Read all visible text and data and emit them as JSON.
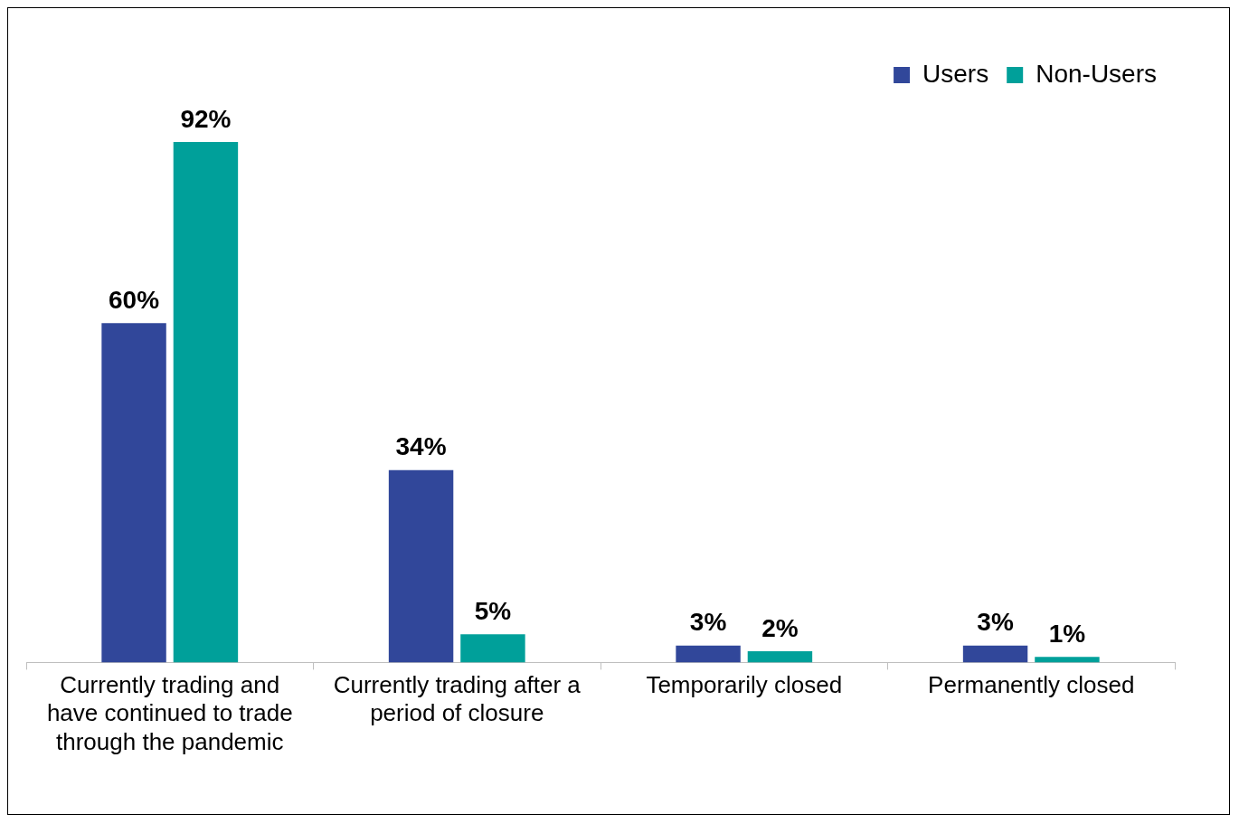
{
  "chart_data": {
    "type": "bar",
    "categories": [
      "Currently trading and have continued to trade through the pandemic",
      "Currently trading after a period of closure",
      "Temporarily closed",
      "Permanently closed"
    ],
    "series": [
      {
        "name": "Users",
        "color": "#31479a",
        "values": [
          60,
          34,
          3,
          3
        ],
        "value_labels": [
          "60%",
          "34%",
          "3%",
          "3%"
        ]
      },
      {
        "name": "Non-Users",
        "color": "#00a09a",
        "values": [
          92,
          5,
          2,
          1
        ],
        "value_labels": [
          "92%",
          "5%",
          "2%",
          "1%"
        ]
      }
    ],
    "legend": "top right",
    "grid": false
  }
}
